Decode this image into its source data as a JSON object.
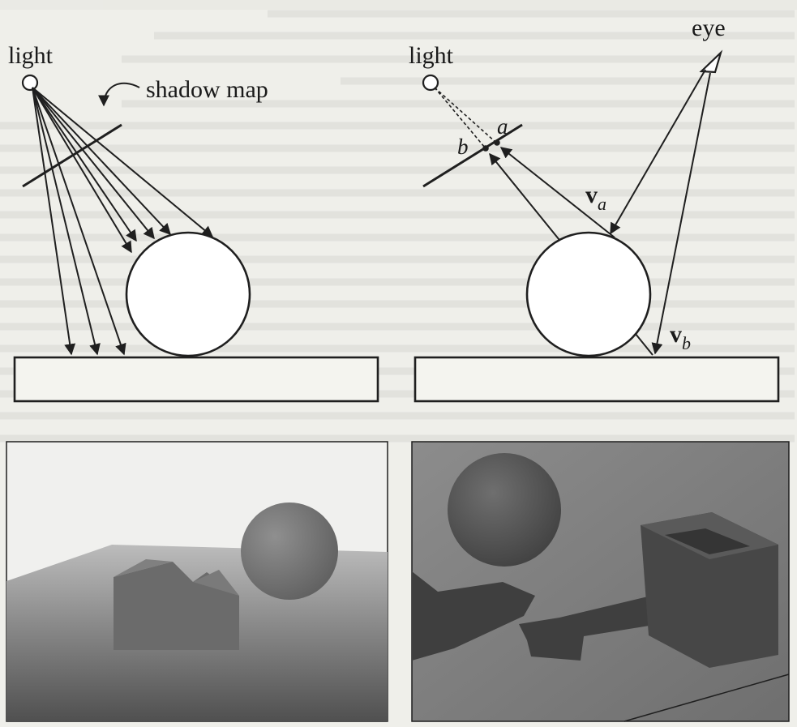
{
  "left_diagram": {
    "light_label": "light",
    "shadow_map_label": "shadow map"
  },
  "right_diagram": {
    "light_label": "light",
    "eye_label": "eye",
    "point_a_label": "a",
    "point_b_label": "b",
    "vector_a": {
      "symbol": "v",
      "subscript": "a"
    },
    "vector_b": {
      "symbol": "v",
      "subscript": "b"
    }
  },
  "renders": {
    "left": "shadow-map-render",
    "right": "shadow-volume-render"
  },
  "colors": {
    "ink": "#1f1f1f",
    "paper": "#efefea",
    "render_sky": "#f2f2f2",
    "render_shadow": "#3f3f3f"
  }
}
